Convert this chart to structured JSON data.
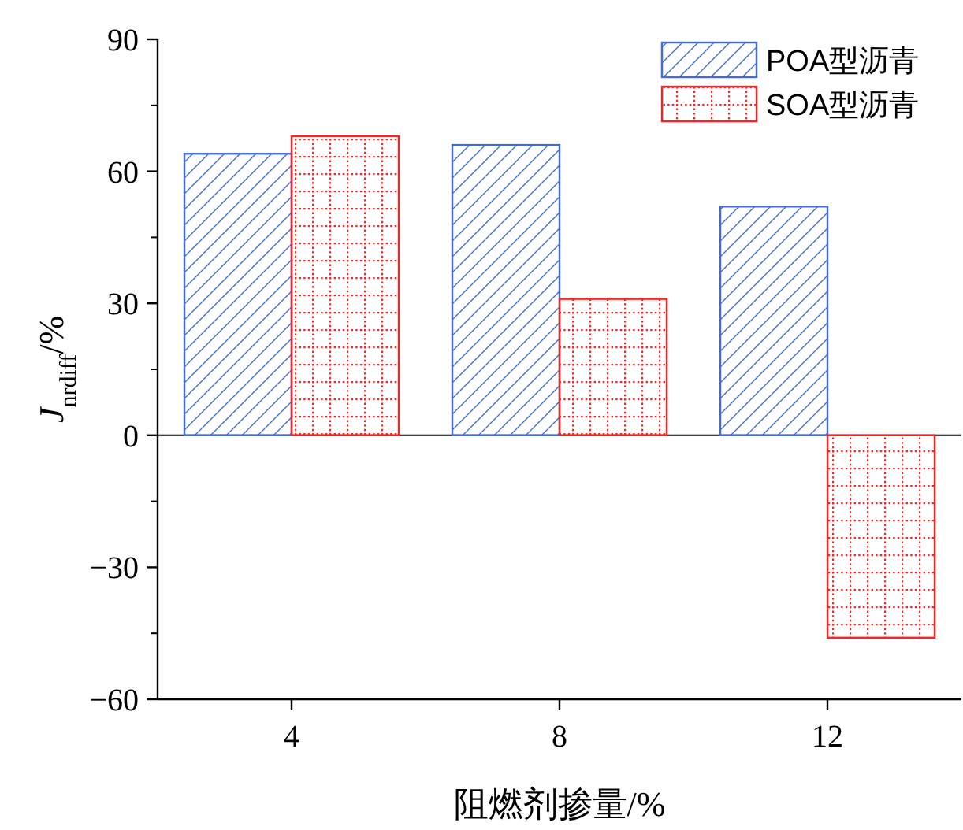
{
  "chart_data": {
    "type": "bar",
    "xlabel": "阻燃剂掺量/%",
    "ylabel": "J$_{nrdiff}$/%",
    "categories": [
      "4",
      "8",
      "12"
    ],
    "series": [
      {
        "name": "POA型沥青",
        "color": "#4169e1",
        "values": [
          64,
          66,
          52
        ]
      },
      {
        "name": "SOA型沥青",
        "color": "#ff2020",
        "values": [
          68,
          31,
          -46
        ]
      }
    ],
    "ylim": [
      -60,
      90
    ],
    "yticks": [
      -60,
      -30,
      0,
      30,
      60,
      90
    ],
    "legend": "top right"
  }
}
